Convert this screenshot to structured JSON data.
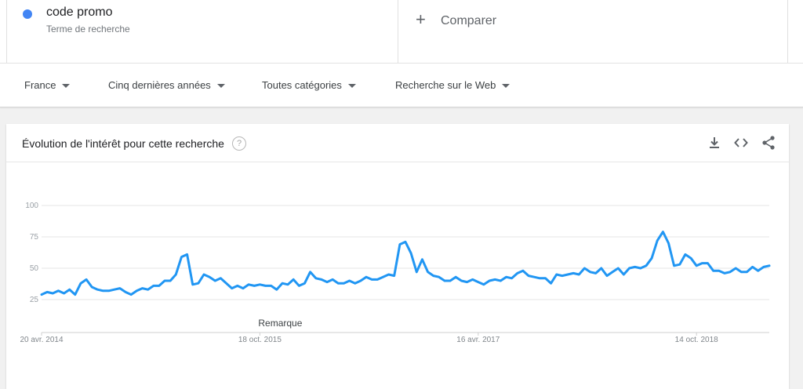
{
  "term": {
    "name": "code promo",
    "subtitle": "Terme de recherche",
    "color": "#4285f4"
  },
  "compare": {
    "plus": "+",
    "label": "Comparer"
  },
  "filters": {
    "region": "France",
    "period": "Cinq dernières années",
    "category": "Toutes catégories",
    "search_type": "Recherche sur le Web"
  },
  "card": {
    "title": "Évolution de l'intérêt pour cette recherche",
    "help": "?",
    "icons": [
      "download-icon",
      "embed-icon",
      "share-icon"
    ]
  },
  "chart_data": {
    "type": "line",
    "x_start": "2014-04-20",
    "x_end": "2019-04-14",
    "ylim": [
      25,
      100
    ],
    "y_ticks": [
      25,
      50,
      75,
      100
    ],
    "x_ticks": [
      {
        "date": "2014-04-20",
        "label": "20 avr. 2014"
      },
      {
        "date": "2015-10-18",
        "label": "18 oct. 2015"
      },
      {
        "date": "2017-04-16",
        "label": "16 avr. 2017"
      },
      {
        "date": "2018-10-14",
        "label": "14 oct. 2018"
      }
    ],
    "annotation": {
      "label": "Remarque",
      "date": "2015-10-18"
    },
    "grid": true,
    "series_color": "#2196f3",
    "points": [
      [
        "2014-04-20",
        29
      ],
      [
        "2014-05-04",
        31
      ],
      [
        "2014-05-18",
        30
      ],
      [
        "2014-06-01",
        32
      ],
      [
        "2014-06-15",
        30
      ],
      [
        "2014-06-29",
        33
      ],
      [
        "2014-07-13",
        29
      ],
      [
        "2014-07-27",
        38
      ],
      [
        "2014-08-10",
        41
      ],
      [
        "2014-08-24",
        35
      ],
      [
        "2014-09-07",
        33
      ],
      [
        "2014-09-21",
        32
      ],
      [
        "2014-10-05",
        32
      ],
      [
        "2014-10-19",
        33
      ],
      [
        "2014-11-02",
        34
      ],
      [
        "2014-11-16",
        31
      ],
      [
        "2014-11-30",
        29
      ],
      [
        "2014-12-14",
        32
      ],
      [
        "2014-12-28",
        34
      ],
      [
        "2015-01-11",
        33
      ],
      [
        "2015-01-25",
        36
      ],
      [
        "2015-02-08",
        36
      ],
      [
        "2015-02-22",
        40
      ],
      [
        "2015-03-08",
        40
      ],
      [
        "2015-03-22",
        45
      ],
      [
        "2015-04-05",
        59
      ],
      [
        "2015-04-19",
        61
      ],
      [
        "2015-05-03",
        37
      ],
      [
        "2015-05-17",
        38
      ],
      [
        "2015-05-31",
        45
      ],
      [
        "2015-06-14",
        43
      ],
      [
        "2015-06-28",
        40
      ],
      [
        "2015-07-12",
        42
      ],
      [
        "2015-07-26",
        38
      ],
      [
        "2015-08-09",
        34
      ],
      [
        "2015-08-23",
        36
      ],
      [
        "2015-09-06",
        34
      ],
      [
        "2015-09-20",
        37
      ],
      [
        "2015-10-04",
        36
      ],
      [
        "2015-10-18",
        37
      ],
      [
        "2015-11-01",
        36
      ],
      [
        "2015-11-15",
        36
      ],
      [
        "2015-11-29",
        33
      ],
      [
        "2015-12-13",
        38
      ],
      [
        "2015-12-27",
        37
      ],
      [
        "2016-01-10",
        41
      ],
      [
        "2016-01-24",
        36
      ],
      [
        "2016-02-07",
        38
      ],
      [
        "2016-02-21",
        47
      ],
      [
        "2016-03-06",
        42
      ],
      [
        "2016-03-20",
        41
      ],
      [
        "2016-04-03",
        39
      ],
      [
        "2016-04-17",
        41
      ],
      [
        "2016-05-01",
        38
      ],
      [
        "2016-05-15",
        38
      ],
      [
        "2016-05-29",
        40
      ],
      [
        "2016-06-12",
        38
      ],
      [
        "2016-06-26",
        40
      ],
      [
        "2016-07-10",
        43
      ],
      [
        "2016-07-24",
        41
      ],
      [
        "2016-08-07",
        41
      ],
      [
        "2016-08-21",
        43
      ],
      [
        "2016-09-04",
        45
      ],
      [
        "2016-09-18",
        44
      ],
      [
        "2016-10-02",
        69
      ],
      [
        "2016-10-16",
        71
      ],
      [
        "2016-10-30",
        62
      ],
      [
        "2016-11-13",
        47
      ],
      [
        "2016-11-27",
        57
      ],
      [
        "2016-12-11",
        47
      ],
      [
        "2016-12-25",
        44
      ],
      [
        "2017-01-08",
        43
      ],
      [
        "2017-01-22",
        40
      ],
      [
        "2017-02-05",
        40
      ],
      [
        "2017-02-19",
        43
      ],
      [
        "2017-03-05",
        40
      ],
      [
        "2017-03-19",
        39
      ],
      [
        "2017-04-02",
        41
      ],
      [
        "2017-04-16",
        39
      ],
      [
        "2017-04-30",
        37
      ],
      [
        "2017-05-14",
        40
      ],
      [
        "2017-05-28",
        41
      ],
      [
        "2017-06-11",
        40
      ],
      [
        "2017-06-25",
        43
      ],
      [
        "2017-07-09",
        42
      ],
      [
        "2017-07-23",
        46
      ],
      [
        "2017-08-06",
        48
      ],
      [
        "2017-08-20",
        44
      ],
      [
        "2017-09-03",
        43
      ],
      [
        "2017-09-17",
        42
      ],
      [
        "2017-10-01",
        42
      ],
      [
        "2017-10-15",
        38
      ],
      [
        "2017-10-29",
        45
      ],
      [
        "2017-11-12",
        44
      ],
      [
        "2017-11-26",
        45
      ],
      [
        "2017-12-10",
        46
      ],
      [
        "2017-12-24",
        45
      ],
      [
        "2018-01-07",
        50
      ],
      [
        "2018-01-21",
        47
      ],
      [
        "2018-02-04",
        46
      ],
      [
        "2018-02-18",
        50
      ],
      [
        "2018-03-04",
        44
      ],
      [
        "2018-03-18",
        47
      ],
      [
        "2018-04-01",
        50
      ],
      [
        "2018-04-15",
        45
      ],
      [
        "2018-04-29",
        50
      ],
      [
        "2018-05-13",
        51
      ],
      [
        "2018-05-27",
        50
      ],
      [
        "2018-06-10",
        52
      ],
      [
        "2018-06-24",
        58
      ],
      [
        "2018-07-08",
        72
      ],
      [
        "2018-07-22",
        79
      ],
      [
        "2018-08-05",
        70
      ],
      [
        "2018-08-19",
        52
      ],
      [
        "2018-09-02",
        53
      ],
      [
        "2018-09-16",
        61
      ],
      [
        "2018-09-30",
        58
      ],
      [
        "2018-10-14",
        52
      ],
      [
        "2018-10-28",
        54
      ],
      [
        "2018-11-11",
        54
      ],
      [
        "2018-11-25",
        48
      ],
      [
        "2018-12-09",
        48
      ],
      [
        "2018-12-23",
        46
      ],
      [
        "2019-01-06",
        47
      ],
      [
        "2019-01-20",
        50
      ],
      [
        "2019-02-03",
        47
      ],
      [
        "2019-02-17",
        47
      ],
      [
        "2019-03-03",
        51
      ],
      [
        "2019-03-17",
        48
      ],
      [
        "2019-03-31",
        51
      ],
      [
        "2019-04-14",
        52
      ]
    ]
  }
}
